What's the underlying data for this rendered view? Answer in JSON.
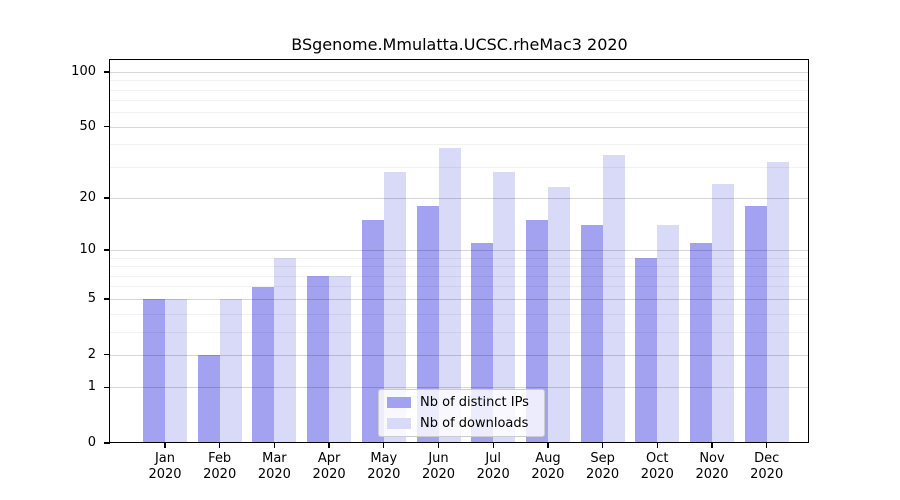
{
  "title": "BSgenome.Mmulatta.UCSC.rheMac3 2020",
  "chart_data": {
    "type": "bar",
    "title": "BSgenome.Mmulatta.UCSC.rheMac3 2020",
    "categories": [
      "Jan",
      "Feb",
      "Mar",
      "Apr",
      "May",
      "Jun",
      "Jul",
      "Aug",
      "Sep",
      "Oct",
      "Nov",
      "Dec"
    ],
    "category_year": "2020",
    "series": [
      {
        "name": "Nb of distinct IPs",
        "color": "#a2a2f0",
        "values": [
          5,
          2,
          6,
          7,
          15,
          18,
          11,
          15,
          14,
          9,
          11,
          18
        ]
      },
      {
        "name": "Nb of downloads",
        "color": "#d9d9f8",
        "values": [
          5,
          5,
          9,
          7,
          28,
          38,
          28,
          23,
          35,
          14,
          24,
          32
        ]
      }
    ],
    "yscale": "log1p",
    "ylim": [
      0,
      116
    ],
    "y_major_ticks": [
      0,
      1,
      2,
      5,
      10,
      20,
      50,
      100
    ],
    "y_minor_gridlines": [
      3,
      4,
      6,
      7,
      8,
      9,
      30,
      40,
      60,
      70,
      80,
      90
    ],
    "grid": true,
    "legend_position": "lower center",
    "xlabel": "",
    "ylabel": ""
  },
  "colors": {
    "background": "#ffffff",
    "axis": "#000000",
    "major_grid": "rgba(0,0,0,0.16)",
    "minor_grid": "rgba(0,0,0,0.055)",
    "bar_distinct_ips": "#a2a2f0",
    "bar_downloads": "#d9d9f8"
  }
}
